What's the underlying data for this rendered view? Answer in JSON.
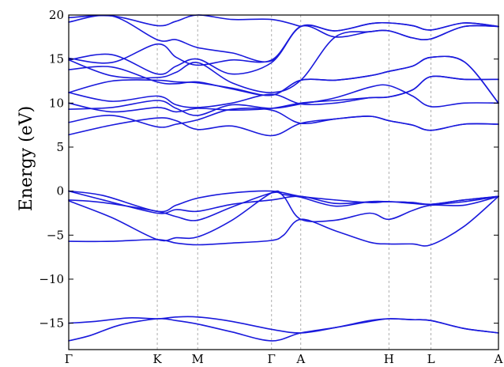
{
  "chart_data": {
    "type": "line",
    "title": "",
    "xlabel": "",
    "ylabel": "Energy (eV)",
    "ylim": [
      -18,
      20
    ],
    "yticks": [
      {
        "value": 20,
        "label": "20"
      },
      {
        "value": 15,
        "label": "15"
      },
      {
        "value": 10,
        "label": "10"
      },
      {
        "value": 5,
        "label": "5"
      },
      {
        "value": 0,
        "label": "0"
      },
      {
        "value": -5,
        "label": "−5"
      },
      {
        "value": -10,
        "label": "−10"
      },
      {
        "value": -15,
        "label": "−15"
      }
    ],
    "kpoints": [
      {
        "label": "Γ",
        "k": 0
      },
      {
        "label": "K",
        "k": 0.206
      },
      {
        "label": "M",
        "k": 0.3
      },
      {
        "label": "Γ",
        "k": 0.472
      },
      {
        "label": "A",
        "k": 0.54
      },
      {
        "label": "H",
        "k": 0.745
      },
      {
        "label": "L",
        "k": 0.843
      },
      {
        "label": "A",
        "k": 1.0
      }
    ],
    "line_color": "#1a1adc",
    "grid": "dashed vertical lines at high-symmetry points",
    "series": [
      {
        "x": [
          0,
          0.05,
          0.12,
          0.206,
          0.25,
          0.3,
          0.38,
          0.472,
          0.54,
          0.62,
          0.7,
          0.745,
          0.8,
          0.843,
          0.92,
          1.0
        ],
        "y": [
          -17.0,
          -16.4,
          -15.2,
          -14.5,
          -14.7,
          -15.1,
          -16.0,
          -17.0,
          -16.1,
          -15.5,
          -14.8,
          -14.5,
          -14.6,
          -14.7,
          -15.6,
          -16.1
        ]
      },
      {
        "x": [
          0,
          0.06,
          0.14,
          0.206,
          0.25,
          0.3,
          0.38,
          0.472,
          0.54,
          0.62,
          0.7,
          0.745,
          0.8,
          0.843,
          0.92,
          1.0
        ],
        "y": [
          -15.0,
          -14.8,
          -14.4,
          -14.5,
          -14.3,
          -14.3,
          -14.8,
          -15.7,
          -16.1,
          -15.5,
          -14.7,
          -14.5,
          -14.6,
          -14.7,
          -15.6,
          -16.1
        ]
      },
      {
        "x": [
          0,
          0.1,
          0.206,
          0.25,
          0.3,
          0.38,
          0.472,
          0.5,
          0.54,
          0.62,
          0.7,
          0.745,
          0.8,
          0.843,
          0.92,
          1.0
        ],
        "y": [
          -5.7,
          -5.7,
          -5.5,
          -5.9,
          -6.1,
          -5.9,
          -5.6,
          -5.0,
          -3.2,
          -4.5,
          -5.8,
          -6.0,
          -6.0,
          -6.1,
          -4.0,
          -0.6
        ]
      },
      {
        "x": [
          0,
          0.1,
          0.206,
          0.25,
          0.3,
          0.38,
          0.472,
          0.5,
          0.54,
          0.62,
          0.7,
          0.745,
          0.8,
          0.843,
          0.92,
          1.0
        ],
        "y": [
          -1.1,
          -3.0,
          -5.5,
          -5.3,
          -5.2,
          -3.3,
          -0.2,
          -0.6,
          -3.2,
          -3.3,
          -2.5,
          -3.2,
          -2.2,
          -1.6,
          -1.6,
          -0.6
        ]
      },
      {
        "x": [
          0,
          0.08,
          0.206,
          0.25,
          0.3,
          0.38,
          0.472,
          0.5,
          0.54,
          0.62,
          0.7,
          0.745,
          0.8,
          0.843,
          0.92,
          1.0
        ],
        "y": [
          -1.0,
          -1.3,
          -2.3,
          -2.9,
          -3.3,
          -1.8,
          -0.2,
          -0.4,
          -0.7,
          -1.7,
          -1.2,
          -1.2,
          -1.3,
          -1.5,
          -1.2,
          -0.6
        ]
      },
      {
        "x": [
          0,
          0.08,
          0.206,
          0.25,
          0.3,
          0.38,
          0.472,
          0.54,
          0.62,
          0.7,
          0.745,
          0.8,
          0.843,
          0.92,
          1.0
        ],
        "y": [
          0,
          -1.0,
          -2.5,
          -2.1,
          -2.3,
          -1.5,
          -1.0,
          -0.6,
          -1.4,
          -1.2,
          -1.2,
          -1.3,
          -1.5,
          -1.0,
          -0.6
        ]
      },
      {
        "x": [
          0,
          0.08,
          0.206,
          0.25,
          0.3,
          0.38,
          0.472,
          0.54,
          0.62,
          0.7,
          0.745,
          0.8,
          0.843,
          0.92,
          1.0
        ],
        "y": [
          0,
          -0.5,
          -2.3,
          -1.6,
          -0.8,
          -0.2,
          0,
          -0.6,
          -1.0,
          -1.3,
          -1.2,
          -1.4,
          -1.5,
          -1.0,
          -0.6
        ]
      },
      {
        "x": [
          0,
          0.1,
          0.206,
          0.25,
          0.3,
          0.38,
          0.472,
          0.54,
          0.62,
          0.7,
          0.745,
          0.8,
          0.843,
          0.92,
          1.0
        ],
        "y": [
          6.4,
          7.5,
          8.3,
          8.0,
          7.0,
          7.4,
          6.3,
          7.7,
          8.2,
          8.5,
          8.0,
          7.5,
          6.9,
          7.6,
          7.6
        ]
      },
      {
        "x": [
          0,
          0.1,
          0.206,
          0.25,
          0.3,
          0.38,
          0.472,
          0.54,
          0.62,
          0.7,
          0.745,
          0.8,
          0.843,
          0.92,
          1.0
        ],
        "y": [
          7.8,
          8.6,
          7.3,
          7.6,
          8.1,
          9.3,
          9.2,
          7.7,
          8.2,
          8.5,
          8.0,
          7.5,
          6.9,
          7.6,
          7.6
        ]
      },
      {
        "x": [
          0,
          0.1,
          0.206,
          0.25,
          0.3,
          0.38,
          0.472,
          0.54,
          0.62,
          0.7,
          0.745,
          0.8,
          0.843,
          0.92,
          1.0
        ],
        "y": [
          9.3,
          9.5,
          10.3,
          9.4,
          8.6,
          9.8,
          9.4,
          9.9,
          10.6,
          11.8,
          12.0,
          10.8,
          9.6,
          10.0,
          10.0
        ]
      },
      {
        "x": [
          0,
          0.1,
          0.206,
          0.25,
          0.3,
          0.38,
          0.472,
          0.54,
          0.62,
          0.7,
          0.745,
          0.8,
          0.843,
          0.92,
          1.0
        ],
        "y": [
          10.0,
          9.0,
          9.5,
          9.0,
          9.4,
          9.2,
          9.4,
          10.0,
          10.3,
          10.6,
          10.7,
          11.5,
          13.0,
          12.7,
          12.7
        ]
      },
      {
        "x": [
          0,
          0.1,
          0.206,
          0.25,
          0.3,
          0.38,
          0.472,
          0.54,
          0.62,
          0.7,
          0.745,
          0.8,
          0.843,
          0.92,
          1.0
        ],
        "y": [
          11.2,
          10.2,
          10.8,
          9.8,
          9.5,
          10.0,
          11.0,
          9.9,
          10.0,
          10.6,
          10.7,
          11.5,
          13.0,
          12.7,
          12.7
        ]
      },
      {
        "x": [
          0,
          0.1,
          0.206,
          0.25,
          0.3,
          0.38,
          0.472,
          0.54,
          0.62,
          0.7,
          0.745,
          0.8,
          0.843,
          0.92,
          1.0
        ],
        "y": [
          11.2,
          12.5,
          12.6,
          12.4,
          12.3,
          11.7,
          10.9,
          12.6,
          12.6,
          13.1,
          13.6,
          14.2,
          15.2,
          14.7,
          10.0
        ]
      },
      {
        "x": [
          0,
          0.1,
          0.206,
          0.25,
          0.3,
          0.38,
          0.472,
          0.54,
          0.62,
          0.7,
          0.745,
          0.8,
          0.843,
          0.92,
          1.0
        ],
        "y": [
          13.8,
          14.1,
          12.4,
          12.2,
          12.4,
          11.6,
          10.9,
          12.6,
          12.6,
          13.1,
          13.6,
          14.2,
          15.2,
          14.7,
          10.0
        ]
      },
      {
        "x": [
          0,
          0.1,
          0.206,
          0.25,
          0.3,
          0.38,
          0.472,
          0.54,
          0.62,
          0.7,
          0.745,
          0.8,
          0.843,
          0.92,
          1.0
        ],
        "y": [
          14.9,
          13.1,
          12.9,
          13.5,
          14.6,
          12.3,
          11.2,
          12.6,
          17.5,
          18.1,
          18.2,
          17.4,
          17.3,
          18.7,
          18.7
        ]
      },
      {
        "x": [
          0,
          0.1,
          0.206,
          0.25,
          0.3,
          0.38,
          0.472,
          0.54,
          0.62,
          0.7,
          0.745,
          0.8,
          0.843,
          0.92,
          1.0
        ],
        "y": [
          14.9,
          15.5,
          13.3,
          14.2,
          15.0,
          13.3,
          14.6,
          18.7,
          18.2,
          19.0,
          19.1,
          18.8,
          18.3,
          19.1,
          18.7
        ]
      },
      {
        "x": [
          0,
          0.1,
          0.206,
          0.25,
          0.3,
          0.38,
          0.472,
          0.54,
          0.62,
          0.7,
          0.745,
          0.8,
          0.843,
          0.92,
          1.0
        ],
        "y": [
          15.1,
          14.6,
          16.7,
          15.2,
          14.3,
          14.9,
          14.9,
          18.7,
          18.2,
          19.0,
          19.1,
          18.8,
          18.3,
          19.1,
          18.7
        ]
      },
      {
        "x": [
          0,
          0.1,
          0.206,
          0.25,
          0.3,
          0.38,
          0.472,
          0.54,
          0.62,
          0.7,
          0.745,
          0.8,
          0.843,
          0.92,
          1.0
        ],
        "y": [
          19.2,
          19.9,
          17.2,
          17.2,
          16.3,
          15.7,
          14.8,
          18.7,
          17.5,
          18.1,
          18.2,
          17.4,
          17.3,
          18.7,
          18.7
        ]
      },
      {
        "x": [
          0,
          0.1,
          0.206,
          0.25,
          0.3,
          0.38,
          0.472,
          0.54
        ],
        "y": [
          19.7,
          19.9,
          18.8,
          19.3,
          20.0,
          19.5,
          19.5,
          18.7
        ]
      }
    ]
  }
}
